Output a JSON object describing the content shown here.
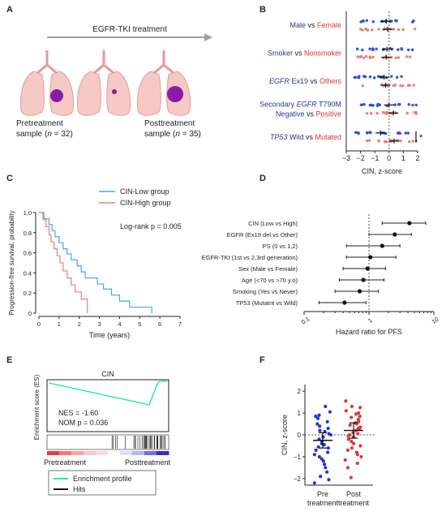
{
  "figure": {
    "panel_letters": [
      "A",
      "B",
      "C",
      "D",
      "E",
      "F"
    ]
  },
  "panel_a": {
    "treatment_label": "EGFR-TKI treatment",
    "pre_label_line1": "Pretreatment",
    "pre_label_line2": "sample (",
    "pre_n": "n",
    "pre_count": " = 32)",
    "post_label_line1": "Posttreatment",
    "post_label_line2": "sample (",
    "post_n": "n",
    "post_count": " = 35)",
    "colors": {
      "lung": "#f5c9c6",
      "lung_edge": "#e59a96",
      "tumor": "#8b1aa8",
      "arrow": "#a0a0a0"
    }
  },
  "chart_data": [
    {
      "panel": "B",
      "type": "scatter",
      "xlabel": "CIN, z-score",
      "xlim": [
        -3,
        2
      ],
      "xticks": [
        "−3",
        "−2",
        "−1",
        "0",
        "1",
        "2"
      ],
      "comparisons": [
        {
          "parts": [
            {
              "text": "Male",
              "color": "#1f3a93"
            },
            {
              "text": " vs ",
              "color": "#222222"
            },
            {
              "text": "Female",
              "color": "#e03030"
            }
          ],
          "blue_mean": -0.2,
          "red_mean": -0.1
        },
        {
          "parts": [
            {
              "text": "Smoker",
              "color": "#1f3a93"
            },
            {
              "text": " vs ",
              "color": "#222222"
            },
            {
              "text": "Nonsmoker",
              "color": "#e03030"
            }
          ],
          "blue_mean": -0.15,
          "red_mean": -0.2
        },
        {
          "parts": [
            {
              "text": "EGFR",
              "color": "#1f3a93",
              "italic": true
            },
            {
              "text": " Ex19",
              "color": "#1f3a93"
            },
            {
              "text": " vs ",
              "color": "#222222"
            },
            {
              "text": "Others",
              "color": "#e03030"
            }
          ],
          "blue_mean": -0.35,
          "red_mean": -0.25
        },
        {
          "parts": [
            {
              "text": "Secondary ",
              "color": "#1f3a93"
            },
            {
              "text": "EGFR",
              "color": "#1f3a93",
              "italic": true
            },
            {
              "text": " T790M",
              "color": "#1f3a93"
            }
          ],
          "parts2": [
            {
              "text": "Negative",
              "color": "#1f3a93"
            },
            {
              "text": " vs ",
              "color": "#222222"
            },
            {
              "text": "Positive",
              "color": "#e03030"
            }
          ],
          "blue_mean": 0.0,
          "red_mean": 0.3
        },
        {
          "parts": [
            {
              "text": "TP53",
              "color": "#1f3a93",
              "italic": true
            },
            {
              "text": " Wild",
              "color": "#1f3a93"
            },
            {
              "text": " vs ",
              "color": "#222222"
            },
            {
              "text": "Mutated",
              "color": "#e03030"
            }
          ],
          "blue_mean": -0.6,
          "red_mean": 0.35,
          "significance": "*"
        }
      ],
      "colors": {
        "blue": "#3050d0",
        "red": "#e88080"
      }
    },
    {
      "panel": "C",
      "type": "line",
      "xlabel": "Time (years)",
      "ylabel": "Progression-free survival, probability",
      "xticks": [
        "0",
        "1",
        "2",
        "3",
        "4",
        "5",
        "6",
        "7"
      ],
      "yticks": [
        "0",
        "0.2",
        "0.4",
        "0.6",
        "0.8",
        "1.0"
      ],
      "xlim": [
        0,
        7
      ],
      "ylim": [
        0,
        1
      ],
      "annotation": "Log-rank p = 0.005",
      "series": [
        {
          "name": "CIN-Low group",
          "color": "#4aa8e0",
          "x": [
            0,
            0.25,
            0.5,
            0.65,
            0.8,
            1.0,
            1.2,
            1.4,
            1.6,
            1.9,
            2.1,
            2.3,
            2.6,
            2.9,
            3.2,
            3.6,
            4.0,
            4.5,
            5.1,
            5.6
          ],
          "y": [
            1.0,
            0.94,
            0.88,
            0.82,
            0.76,
            0.7,
            0.64,
            0.59,
            0.53,
            0.47,
            0.41,
            0.35,
            0.35,
            0.29,
            0.24,
            0.18,
            0.12,
            0.06,
            0.06,
            0.0
          ]
        },
        {
          "name": "CIN-High group",
          "color": "#e88080",
          "x": [
            0,
            0.2,
            0.35,
            0.5,
            0.6,
            0.75,
            0.9,
            1.05,
            1.2,
            1.4,
            1.6,
            1.8,
            2.1,
            2.4
          ],
          "y": [
            1.0,
            0.93,
            0.86,
            0.78,
            0.71,
            0.64,
            0.57,
            0.5,
            0.42,
            0.35,
            0.28,
            0.21,
            0.14,
            0.0
          ]
        }
      ]
    },
    {
      "panel": "D",
      "type": "scatter",
      "xlabel": "Hazard ratio for PFS",
      "xscale": "log",
      "xlim": [
        0.1,
        10
      ],
      "xticks": [
        "0.1",
        "1",
        "10"
      ],
      "rows": [
        {
          "label": "CIN (Low vs High)",
          "hr": 4.2,
          "lo": 1.6,
          "hi": 7.5
        },
        {
          "label": "EGFR (Ex19 del vs Other)",
          "hr": 2.5,
          "lo": 1.0,
          "hi": 4.5
        },
        {
          "label": "PS (0 vs 1,2)",
          "hr": 1.6,
          "lo": 0.45,
          "hi": 3.0
        },
        {
          "label": "EGFR-TKI (1st vs 2,3rd generation)",
          "hr": 1.05,
          "lo": 0.45,
          "hi": 2.6
        },
        {
          "label": "Sex (Male vs Female)",
          "hr": 0.95,
          "lo": 0.4,
          "hi": 1.8
        },
        {
          "label": "Age (<70 vs >70 y.o)",
          "hr": 0.82,
          "lo": 0.35,
          "hi": 1.7
        },
        {
          "label": "Smoking (Yes vs Never)",
          "hr": 0.72,
          "lo": 0.3,
          "hi": 1.4
        },
        {
          "label": "TP53 (Mutatnt vs Wild)",
          "hr": 0.42,
          "lo": 0.17,
          "hi": 0.9
        }
      ]
    },
    {
      "panel": "E",
      "type": "line",
      "title": "CIN",
      "ylabel": "Enrichment score (ES)",
      "annotation_nes": "NES = -1.60",
      "annotation_nom": "NOM p = 0.036",
      "left_label": "Pretreatment",
      "right_label": "Posttreatment",
      "legend": [
        {
          "name": "Enrichment profile",
          "color": "#22e8a8"
        },
        {
          "name": "Hits",
          "color": "#111111"
        }
      ]
    },
    {
      "panel": "F",
      "type": "scatter",
      "ylabel": "CIN, z-score",
      "ylim": [
        -2.3,
        2.3
      ],
      "yticks": [
        "−2",
        "−1",
        "0",
        "1",
        "2"
      ],
      "categories": [
        "Pre\ntreatment",
        "Post\ntreatment"
      ],
      "cat_line1": [
        "Pre",
        "Post"
      ],
      "cat_line2": [
        "treatment",
        "treatment"
      ],
      "series": [
        {
          "name": "Pre",
          "color": "#1f35d8",
          "mean": -0.25,
          "ci": [
            -0.6,
            0.1
          ],
          "values": [
            1.3,
            1.05,
            0.9,
            0.85,
            0.75,
            0.6,
            0.5,
            0.4,
            0.3,
            0.2,
            0.15,
            0.05,
            0.0,
            -0.1,
            -0.2,
            -0.3,
            -0.4,
            -0.45,
            -0.55,
            -0.6,
            -0.7,
            -0.8,
            -0.9,
            -1.0,
            -1.1,
            -1.2,
            -1.35,
            -1.5,
            -1.7,
            -1.9,
            -2.05,
            -2.2
          ]
        },
        {
          "name": "Post",
          "color": "#e03535",
          "mean": 0.2,
          "ci": [
            -0.15,
            0.55
          ],
          "values": [
            1.55,
            1.3,
            1.25,
            1.1,
            1.0,
            0.95,
            0.85,
            0.8,
            0.7,
            0.6,
            0.55,
            0.5,
            0.45,
            0.35,
            0.3,
            0.25,
            0.2,
            0.1,
            0.05,
            0.0,
            -0.05,
            -0.1,
            -0.2,
            -0.3,
            -0.4,
            -0.5,
            -0.6,
            -0.7,
            -0.8,
            -0.9,
            -1.0,
            -1.15,
            -1.3,
            -1.5,
            -1.95
          ]
        }
      ]
    }
  ]
}
